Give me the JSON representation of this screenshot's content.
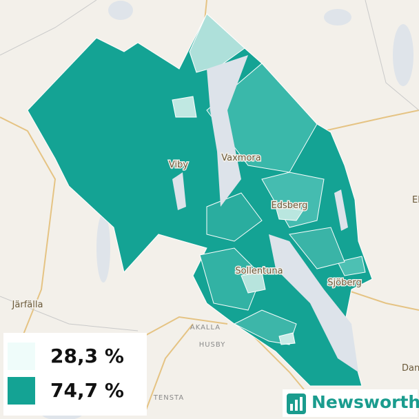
{
  "places": [
    {
      "label": "Viby"
    },
    {
      "label": "Vaxmora"
    },
    {
      "label": "Edsberg"
    },
    {
      "label": "Sollentuna"
    },
    {
      "label": "Sjöberg"
    },
    {
      "label": "Järfälla"
    },
    {
      "label": "AKALLA"
    },
    {
      "label": "HUSBY"
    },
    {
      "label": "TENSTA"
    },
    {
      "label": "Dan"
    },
    {
      "label": "El"
    }
  ],
  "legend": {
    "items": [
      {
        "label": "28,3 %",
        "color": "#effcfa"
      },
      {
        "label": "74,7 %",
        "color": "#14a394"
      }
    ]
  },
  "logo": {
    "text": "Newsworthy"
  }
}
